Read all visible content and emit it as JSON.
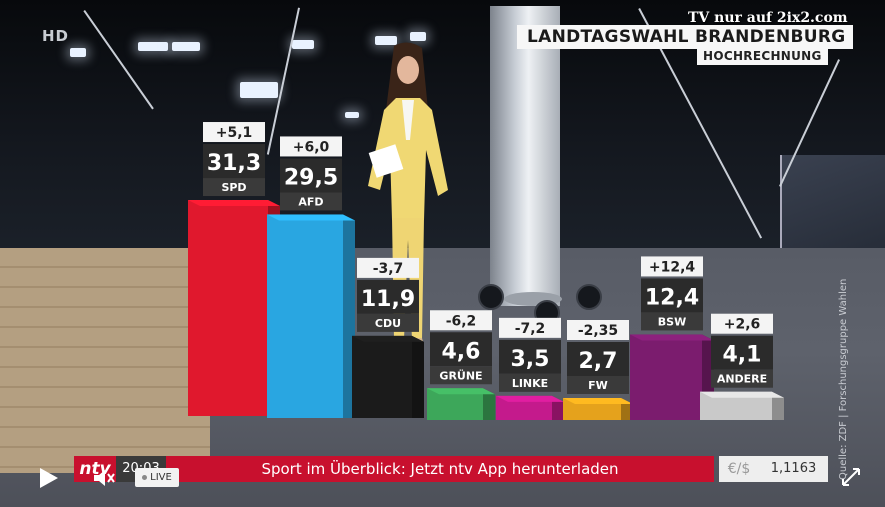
{
  "overlay": {
    "hd_badge": "HD",
    "watermark": "TV nur auf 2ix2.com",
    "title": "LANDTAGSWAHL BRANDENBURG",
    "subtitle": "HOCHRECHNUNG",
    "source": "Quelle: ZDF | Forschungsgruppe Wahlen"
  },
  "chart_data": {
    "type": "bar",
    "title": "LANDTAGSWAHL BRANDENBURG",
    "subtitle": "HOCHRECHNUNG",
    "categories": [
      "SPD",
      "AFD",
      "CDU",
      "GRÜNE",
      "LINKE",
      "FW",
      "BSW",
      "ANDERE"
    ],
    "values": [
      31.3,
      29.5,
      11.9,
      4.6,
      3.5,
      2.7,
      12.4,
      4.1
    ],
    "value_labels": [
      "31,3",
      "29,5",
      "11,9",
      "4,6",
      "3,5",
      "2,7",
      "12,4",
      "4,1"
    ],
    "changes": [
      5.1,
      6.0,
      -3.7,
      -6.2,
      -7.2,
      -2.35,
      12.4,
      2.6
    ],
    "change_labels": [
      "+5,1",
      "+6,0",
      "-3,7",
      "-6,2",
      "-7,2",
      "-2,35",
      "+12,4",
      "+2,6"
    ],
    "colors": [
      "#e0182d",
      "#29a6e1",
      "#1b1b1b",
      "#3da75a",
      "#c41a8c",
      "#e5a21c",
      "#7b1c6e",
      "#c9c9c9"
    ],
    "ylim": [
      0,
      35
    ],
    "grid": false
  },
  "ticker": {
    "logo": "ntv",
    "time": "20:03",
    "headline": "Sport im Überblick: Jetzt ntv App herunterladen",
    "fx_label": "€/$",
    "fx_value": "1,1163"
  },
  "player": {
    "live_label": "LIVE",
    "icons": [
      "play-icon",
      "volume-muted-icon",
      "fullscreen-icon"
    ]
  }
}
